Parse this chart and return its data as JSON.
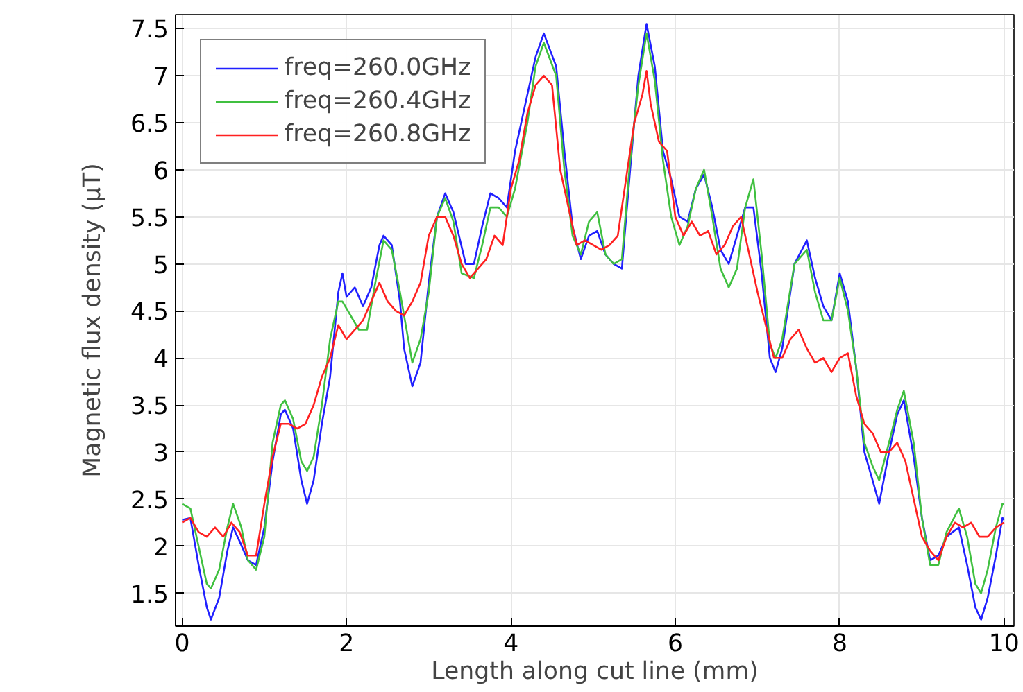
{
  "chart_data": {
    "type": "line",
    "xlabel": "Length along cut line (mm)",
    "ylabel": "Magnetic flux density (µT)",
    "xlim": [
      -0.08,
      10.12
    ],
    "ylim": [
      1.15,
      7.65
    ],
    "xticks": [
      0,
      2,
      4,
      6,
      8,
      10
    ],
    "yticks": [
      1.5,
      2,
      2.5,
      3,
      3.5,
      4,
      4.5,
      5,
      5.5,
      6,
      6.5,
      7,
      7.5
    ],
    "grid": true,
    "legend": "top left",
    "marker": "none",
    "line_style": "solid",
    "series": [
      {
        "name": "freq=260.0GHz",
        "color": "#2020ff",
        "x": [
          0,
          0.1,
          0.2,
          0.3,
          0.35,
          0.45,
          0.55,
          0.62,
          0.7,
          0.8,
          0.9,
          1.0,
          1.1,
          1.2,
          1.25,
          1.35,
          1.45,
          1.52,
          1.6,
          1.7,
          1.8,
          1.9,
          1.95,
          2.0,
          2.1,
          2.2,
          2.3,
          2.4,
          2.45,
          2.55,
          2.65,
          2.7,
          2.8,
          2.9,
          3.0,
          3.1,
          3.2,
          3.3,
          3.45,
          3.55,
          3.65,
          3.75,
          3.85,
          3.95,
          4.05,
          4.15,
          4.3,
          4.4,
          4.55,
          4.65,
          4.75,
          4.85,
          4.95,
          5.05,
          5.15,
          5.25,
          5.35,
          5.45,
          5.55,
          5.65,
          5.75,
          5.85,
          5.95,
          6.05,
          6.15,
          6.25,
          6.35,
          6.45,
          6.55,
          6.65,
          6.75,
          6.85,
          6.95,
          7.05,
          7.15,
          7.22,
          7.3,
          7.45,
          7.6,
          7.7,
          7.8,
          7.9,
          8.0,
          8.1,
          8.2,
          8.3,
          8.4,
          8.48,
          8.6,
          8.7,
          8.78,
          8.9,
          9.0,
          9.1,
          9.2,
          9.3,
          9.45,
          9.55,
          9.65,
          9.72,
          9.8,
          9.9,
          9.98,
          10.0
        ],
        "values": [
          2.28,
          2.3,
          1.8,
          1.35,
          1.22,
          1.45,
          1.95,
          2.2,
          2.05,
          1.85,
          1.8,
          2.2,
          2.9,
          3.4,
          3.45,
          3.25,
          2.7,
          2.45,
          2.7,
          3.3,
          3.8,
          4.7,
          4.9,
          4.65,
          4.75,
          4.55,
          4.75,
          5.2,
          5.3,
          5.2,
          4.6,
          4.1,
          3.7,
          3.95,
          4.8,
          5.5,
          5.75,
          5.55,
          5.0,
          5.0,
          5.4,
          5.75,
          5.7,
          5.6,
          6.2,
          6.6,
          7.2,
          7.45,
          7.1,
          6.2,
          5.4,
          5.05,
          5.3,
          5.35,
          5.1,
          5.0,
          4.95,
          6.0,
          7.0,
          7.55,
          7.1,
          6.2,
          5.9,
          5.5,
          5.45,
          5.8,
          5.95,
          5.6,
          5.15,
          5.0,
          5.3,
          5.6,
          5.6,
          4.9,
          4.0,
          3.85,
          4.1,
          5.0,
          5.25,
          4.85,
          4.55,
          4.4,
          4.9,
          4.6,
          3.9,
          3.0,
          2.7,
          2.45,
          3.0,
          3.4,
          3.55,
          2.95,
          2.3,
          1.85,
          1.9,
          2.1,
          2.2,
          1.8,
          1.35,
          1.22,
          1.45,
          1.9,
          2.3,
          2.28
        ]
      },
      {
        "name": "freq=260.4GHz",
        "color": "#40c040",
        "x": [
          0,
          0.1,
          0.2,
          0.3,
          0.35,
          0.45,
          0.55,
          0.62,
          0.72,
          0.8,
          0.9,
          1.0,
          1.1,
          1.2,
          1.25,
          1.35,
          1.45,
          1.52,
          1.6,
          1.7,
          1.8,
          1.9,
          1.95,
          2.05,
          2.15,
          2.25,
          2.35,
          2.45,
          2.55,
          2.65,
          2.75,
          2.8,
          2.9,
          3.0,
          3.1,
          3.2,
          3.3,
          3.4,
          3.55,
          3.65,
          3.75,
          3.85,
          3.95,
          4.05,
          4.2,
          4.3,
          4.4,
          4.55,
          4.65,
          4.75,
          4.85,
          4.95,
          5.05,
          5.15,
          5.25,
          5.35,
          5.45,
          5.55,
          5.65,
          5.75,
          5.85,
          5.95,
          6.05,
          6.15,
          6.25,
          6.35,
          6.45,
          6.55,
          6.65,
          6.75,
          6.85,
          6.95,
          7.05,
          7.15,
          7.22,
          7.3,
          7.45,
          7.6,
          7.7,
          7.8,
          7.9,
          8.0,
          8.1,
          8.2,
          8.3,
          8.4,
          8.48,
          8.6,
          8.7,
          8.78,
          8.9,
          9.0,
          9.1,
          9.2,
          9.3,
          9.45,
          9.55,
          9.65,
          9.72,
          9.8,
          9.9,
          9.98,
          10.0
        ],
        "values": [
          2.45,
          2.4,
          2.0,
          1.6,
          1.55,
          1.75,
          2.2,
          2.45,
          2.2,
          1.85,
          1.75,
          2.1,
          3.1,
          3.5,
          3.55,
          3.35,
          2.9,
          2.8,
          2.95,
          3.5,
          4.2,
          4.6,
          4.6,
          4.45,
          4.3,
          4.3,
          4.8,
          5.25,
          5.15,
          4.7,
          4.2,
          3.95,
          4.2,
          4.7,
          5.5,
          5.7,
          5.45,
          4.9,
          4.85,
          5.2,
          5.6,
          5.6,
          5.5,
          5.8,
          6.5,
          7.1,
          7.35,
          7.0,
          6.0,
          5.3,
          5.1,
          5.45,
          5.55,
          5.1,
          5.0,
          5.05,
          6.1,
          6.9,
          7.45,
          6.95,
          6.1,
          5.5,
          5.2,
          5.4,
          5.8,
          6.0,
          5.5,
          4.95,
          4.75,
          4.95,
          5.6,
          5.9,
          5.1,
          4.15,
          4.0,
          4.2,
          5.0,
          5.15,
          4.7,
          4.4,
          4.4,
          4.85,
          4.5,
          3.9,
          3.1,
          2.85,
          2.7,
          3.1,
          3.45,
          3.65,
          3.1,
          2.3,
          1.8,
          1.8,
          2.15,
          2.4,
          2.1,
          1.6,
          1.5,
          1.75,
          2.2,
          2.45,
          2.45
        ]
      },
      {
        "name": "freq=260.8GHz",
        "color": "#ff2020",
        "x": [
          0,
          0.1,
          0.2,
          0.3,
          0.4,
          0.5,
          0.6,
          0.7,
          0.8,
          0.9,
          1.0,
          1.1,
          1.2,
          1.3,
          1.4,
          1.5,
          1.6,
          1.7,
          1.8,
          1.9,
          2.0,
          2.1,
          2.2,
          2.3,
          2.4,
          2.5,
          2.6,
          2.7,
          2.8,
          2.9,
          3.0,
          3.1,
          3.2,
          3.3,
          3.4,
          3.5,
          3.6,
          3.7,
          3.8,
          3.9,
          4.0,
          4.1,
          4.2,
          4.3,
          4.4,
          4.5,
          4.6,
          4.7,
          4.8,
          4.9,
          5.0,
          5.1,
          5.2,
          5.3,
          5.4,
          5.5,
          5.6,
          5.65,
          5.7,
          5.8,
          5.9,
          6.0,
          6.1,
          6.2,
          6.3,
          6.4,
          6.5,
          6.6,
          6.7,
          6.8,
          6.9,
          7.0,
          7.1,
          7.2,
          7.3,
          7.4,
          7.5,
          7.6,
          7.7,
          7.8,
          7.9,
          8.0,
          8.1,
          8.2,
          8.3,
          8.4,
          8.5,
          8.6,
          8.7,
          8.8,
          8.9,
          9.0,
          9.1,
          9.2,
          9.3,
          9.4,
          9.5,
          9.6,
          9.7,
          9.8,
          9.9,
          10.0
        ],
        "values": [
          2.25,
          2.3,
          2.15,
          2.1,
          2.2,
          2.1,
          2.25,
          2.15,
          1.9,
          1.9,
          2.45,
          2.95,
          3.3,
          3.3,
          3.25,
          3.3,
          3.5,
          3.8,
          4.0,
          4.35,
          4.2,
          4.3,
          4.4,
          4.6,
          4.8,
          4.6,
          4.5,
          4.45,
          4.6,
          4.8,
          5.3,
          5.5,
          5.5,
          5.3,
          5.0,
          4.85,
          4.95,
          5.05,
          5.3,
          5.2,
          5.8,
          6.1,
          6.6,
          6.9,
          7.0,
          6.9,
          6.0,
          5.6,
          5.2,
          5.25,
          5.2,
          5.15,
          5.2,
          5.3,
          5.9,
          6.5,
          6.8,
          7.05,
          6.7,
          6.3,
          6.2,
          5.5,
          5.3,
          5.45,
          5.3,
          5.35,
          5.1,
          5.2,
          5.4,
          5.5,
          5.1,
          4.7,
          4.35,
          4.0,
          4.0,
          4.2,
          4.3,
          4.1,
          3.95,
          4.0,
          3.85,
          4.0,
          4.05,
          3.6,
          3.3,
          3.2,
          3.0,
          3.0,
          3.1,
          2.9,
          2.5,
          2.1,
          1.95,
          1.85,
          2.1,
          2.25,
          2.2,
          2.25,
          2.1,
          2.1,
          2.2,
          2.25
        ]
      }
    ]
  }
}
